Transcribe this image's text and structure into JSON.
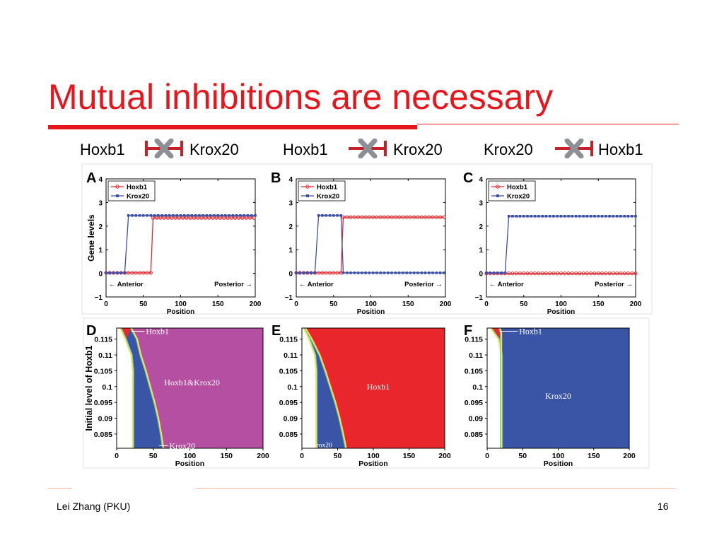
{
  "slide": {
    "title": "Mutual inhibitions are necessary",
    "footer_left": "Lei Zhang (PKU)",
    "page_number": "16",
    "accent_color": "#e5161c"
  },
  "conditions": [
    {
      "left": "Hoxb1",
      "right": "Krox20",
      "inhibited": "mutual",
      "icon": "blocked-inhibition-icon"
    },
    {
      "left": "Hoxb1",
      "right": "Krox20",
      "inhibited": "hoxb1-to-krox20",
      "icon": "blocked-inhibition-icon"
    },
    {
      "left": "Krox20",
      "right": "Hoxb1",
      "inhibited": "krox20-to-hoxb1",
      "icon": "blocked-inhibition-icon"
    }
  ],
  "chart_data": [
    {
      "panel": "A",
      "type": "line",
      "xlabel": "Position",
      "ylabel": "Gene levels",
      "xlim": [
        0,
        200
      ],
      "ylim": [
        -1,
        4
      ],
      "xticks": [
        0,
        50,
        100,
        150,
        200
      ],
      "yticks": [
        -1,
        0,
        1,
        2,
        3,
        4
      ],
      "legend": "top-left",
      "annotations": [
        "← Anterior",
        "Posterior →"
      ],
      "series": [
        {
          "name": "Hoxb1",
          "color": "#e8262c",
          "marker": "circle",
          "segments": [
            {
              "x0": 0,
              "x1": 60,
              "y": 0.02
            },
            {
              "x0": 63,
              "x1": 200,
              "y": 2.35
            }
          ]
        },
        {
          "name": "Krox20",
          "color": "#3b4fa8",
          "marker": "square",
          "segments": [
            {
              "x0": 0,
              "x1": 25,
              "y": 0.02
            },
            {
              "x0": 30,
              "x1": 200,
              "y": 2.45
            }
          ]
        }
      ]
    },
    {
      "panel": "B",
      "type": "line",
      "xlabel": "Position",
      "ylabel": "",
      "xlim": [
        0,
        200
      ],
      "ylim": [
        -1,
        4
      ],
      "xticks": [
        0,
        50,
        100,
        150,
        200
      ],
      "yticks": [
        -1,
        0,
        1,
        2,
        3,
        4
      ],
      "legend": "top-left",
      "annotations": [
        "← Anterior",
        "Posterior →"
      ],
      "series": [
        {
          "name": "Hoxb1",
          "color": "#e8262c",
          "marker": "circle",
          "segments": [
            {
              "x0": 0,
              "x1": 60,
              "y": 0.02
            },
            {
              "x0": 63,
              "x1": 200,
              "y": 2.38
            }
          ]
        },
        {
          "name": "Krox20",
          "color": "#3b4fa8",
          "marker": "square",
          "segments": [
            {
              "x0": 0,
              "x1": 25,
              "y": 0.02
            },
            {
              "x0": 30,
              "x1": 60,
              "y": 2.45
            },
            {
              "x0": 63,
              "x1": 200,
              "y": 0.02
            }
          ]
        }
      ]
    },
    {
      "panel": "C",
      "type": "line",
      "xlabel": "Position",
      "ylabel": "",
      "xlim": [
        0,
        200
      ],
      "ylim": [
        -1,
        4
      ],
      "xticks": [
        0,
        50,
        100,
        150,
        200
      ],
      "yticks": [
        -1,
        0,
        1,
        2,
        3,
        4
      ],
      "legend": "top-left",
      "annotations": [
        "← Anterior",
        "Posterior →"
      ],
      "series": [
        {
          "name": "Hoxb1",
          "color": "#e8262c",
          "marker": "circle",
          "segments": [
            {
              "x0": 0,
              "x1": 200,
              "y": 0.0
            }
          ]
        },
        {
          "name": "Krox20",
          "color": "#3b4fa8",
          "marker": "square",
          "segments": [
            {
              "x0": 0,
              "x1": 25,
              "y": 0.02
            },
            {
              "x0": 30,
              "x1": 200,
              "y": 2.42
            }
          ]
        }
      ]
    },
    {
      "panel": "D",
      "type": "heatmap",
      "xlabel": "Position",
      "ylabel": "Initial level of Hoxb1",
      "xlim": [
        0,
        200
      ],
      "ylim": [
        0.0805,
        0.1185
      ],
      "xticks": [
        0,
        50,
        100,
        150,
        200
      ],
      "yticks": [
        0.085,
        0.09,
        0.095,
        0.1,
        0.105,
        0.11,
        0.115
      ],
      "regions": [
        {
          "name": "Hoxb1",
          "color": "#e8262c"
        },
        {
          "name": "Krox20",
          "color": "#3a55a6"
        },
        {
          "name": "Hoxb1&Krox20",
          "color": "#b54fa1"
        }
      ],
      "boundary_left": [
        [
          0.1185,
          5
        ],
        [
          0.115,
          12
        ],
        [
          0.11,
          20
        ],
        [
          0.105,
          22
        ],
        [
          0.1,
          22
        ],
        [
          0.095,
          22
        ],
        [
          0.09,
          22
        ],
        [
          0.085,
          22
        ],
        [
          0.0805,
          22
        ]
      ],
      "boundary_right": [
        [
          0.1185,
          20
        ],
        [
          0.115,
          28
        ],
        [
          0.11,
          33
        ],
        [
          0.105,
          40
        ],
        [
          0.1,
          46
        ],
        [
          0.095,
          52
        ],
        [
          0.09,
          57
        ],
        [
          0.085,
          61
        ],
        [
          0.0805,
          64
        ]
      ],
      "labels": [
        {
          "text": "Hoxb1",
          "x": 40,
          "y": 0.1175,
          "pointer": [
            20,
            0.1175
          ]
        },
        {
          "text": "Hoxb1&Krox20",
          "x": 103,
          "y": 0.1013
        },
        {
          "text": "Krox20",
          "x": 72,
          "y": 0.0813,
          "pointer": [
            58,
            0.0813
          ]
        }
      ]
    },
    {
      "panel": "E",
      "type": "heatmap",
      "xlabel": "Position",
      "ylabel": "",
      "xlim": [
        0,
        200
      ],
      "ylim": [
        0.0805,
        0.1185
      ],
      "xticks": [
        0,
        50,
        100,
        150,
        200
      ],
      "yticks": [
        0.085,
        0.09,
        0.095,
        0.1,
        0.105,
        0.11,
        0.115
      ],
      "regions": [
        {
          "name": "Hoxb1",
          "color": "#e8262c"
        },
        {
          "name": "Krox20",
          "color": "#3a55a6"
        }
      ],
      "boundary_left": [
        [
          0.1185,
          3
        ],
        [
          0.115,
          10
        ],
        [
          0.11,
          18
        ],
        [
          0.105,
          20
        ],
        [
          0.1,
          20
        ],
        [
          0.095,
          20
        ],
        [
          0.09,
          20
        ],
        [
          0.085,
          20
        ],
        [
          0.0805,
          20
        ]
      ],
      "boundary_right": [
        [
          0.1185,
          5
        ],
        [
          0.115,
          14
        ],
        [
          0.11,
          25
        ],
        [
          0.105,
          33
        ],
        [
          0.1,
          40
        ],
        [
          0.095,
          47
        ],
        [
          0.09,
          53
        ],
        [
          0.085,
          58
        ],
        [
          0.0805,
          62
        ]
      ],
      "labels": [
        {
          "text": "Hoxb1",
          "x": 107,
          "y": 0.1
        },
        {
          "text": "Krox20",
          "x": 28,
          "y": 0.0817,
          "small": true
        }
      ]
    },
    {
      "panel": "F",
      "type": "heatmap",
      "xlabel": "Position",
      "ylabel": "",
      "xlim": [
        0,
        200
      ],
      "ylim": [
        0.0805,
        0.1185
      ],
      "xticks": [
        0,
        50,
        100,
        150,
        200
      ],
      "yticks": [
        0.085,
        0.09,
        0.095,
        0.1,
        0.105,
        0.11,
        0.115
      ],
      "regions": [
        {
          "name": "Hoxb1",
          "color": "#e8262c"
        },
        {
          "name": "Krox20",
          "color": "#3a55a6"
        }
      ],
      "boundary_left": [
        [
          0.1185,
          5
        ],
        [
          0.115,
          16
        ],
        [
          0.11,
          20
        ],
        [
          0.105,
          20
        ],
        [
          0.1,
          20
        ],
        [
          0.095,
          20
        ],
        [
          0.09,
          20
        ],
        [
          0.085,
          20
        ],
        [
          0.0805,
          20
        ]
      ],
      "boundary_right": [
        [
          0.1185,
          18
        ],
        [
          0.117,
          20
        ],
        [
          0.115,
          20
        ],
        [
          0.0805,
          20
        ]
      ],
      "labels": [
        {
          "text": "Hoxb1",
          "x": 45,
          "y": 0.1175,
          "pointer": [
            18,
            0.1175
          ]
        },
        {
          "text": "Krox20",
          "x": 100,
          "y": 0.097
        }
      ]
    }
  ]
}
